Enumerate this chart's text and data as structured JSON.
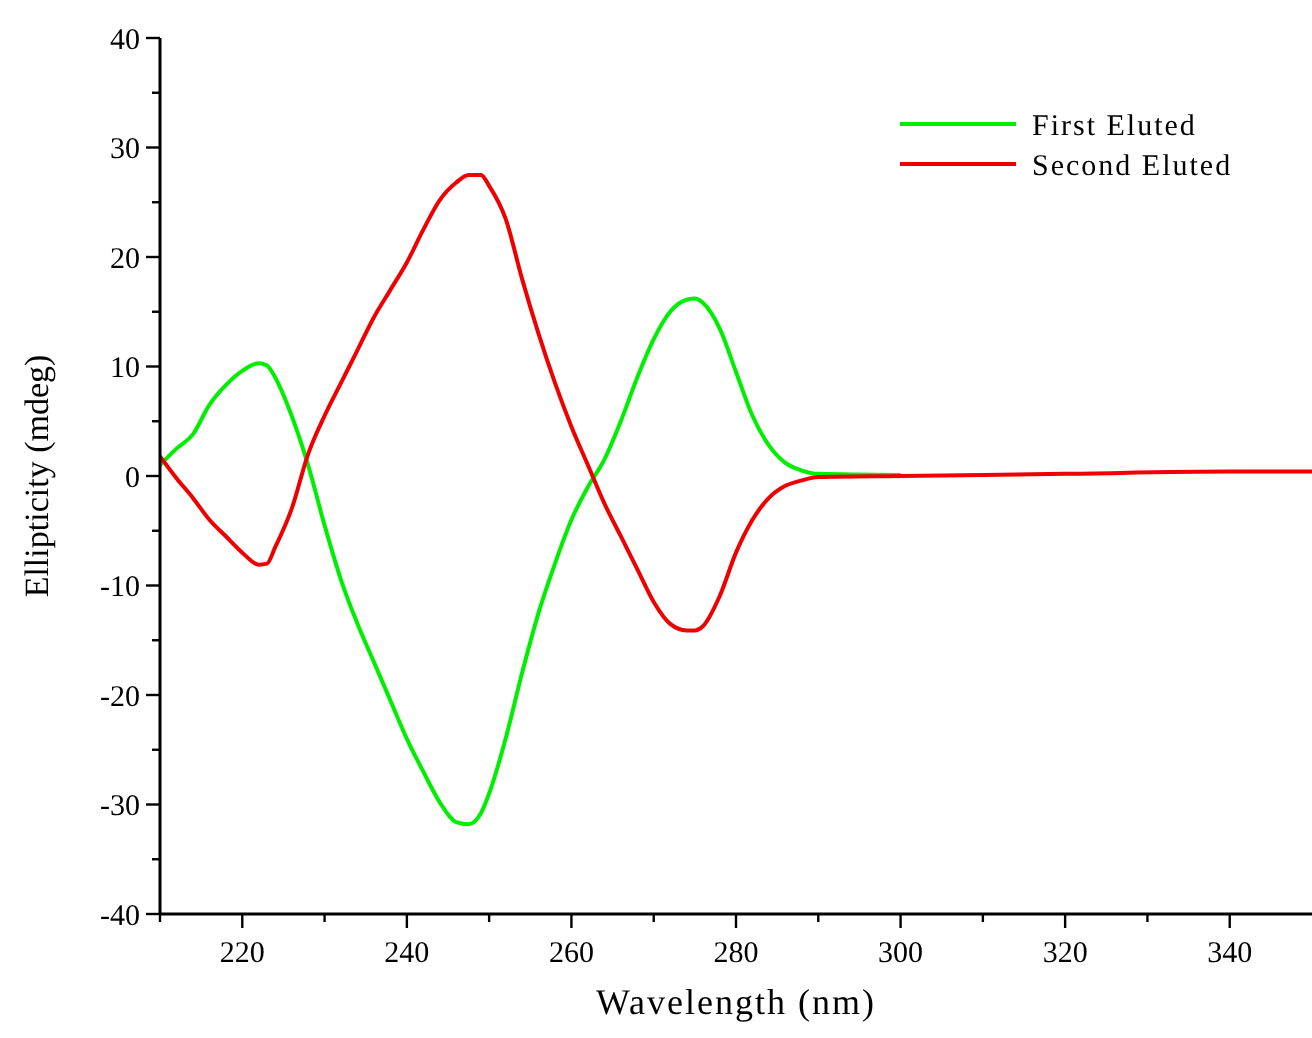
{
  "chart_data": {
    "type": "line",
    "xlabel": "Wavelength (nm)",
    "ylabel": "Ellipticity (mdeg)",
    "xlim": [
      210,
      350
    ],
    "ylim": [
      -40,
      40
    ],
    "xticks": [
      {
        "value": 210,
        "label": null
      },
      220,
      {
        "value": 230,
        "label": null
      },
      240,
      {
        "value": 250,
        "label": null
      },
      260,
      {
        "value": 270,
        "label": null
      },
      280,
      {
        "value": 290,
        "label": null
      },
      300,
      {
        "value": 310,
        "label": null
      },
      320,
      {
        "value": 330,
        "label": null
      },
      340
    ],
    "yticks": [
      -40,
      {
        "value": -35,
        "label": null
      },
      -30,
      {
        "value": -25,
        "label": null
      },
      -20,
      {
        "value": -15,
        "label": null
      },
      -10,
      {
        "value": -5,
        "label": null
      },
      0,
      {
        "value": 5,
        "label": null
      },
      10,
      {
        "value": 15,
        "label": null
      },
      20,
      {
        "value": 25,
        "label": null
      },
      30,
      {
        "value": 35,
        "label": null
      },
      40
    ],
    "grid": false,
    "legend": "top right",
    "marker": "none",
    "line_style": "solid",
    "x": [
      210,
      212,
      214,
      216,
      218,
      220,
      222,
      223,
      224,
      226,
      228,
      230,
      232,
      234,
      236,
      238,
      240,
      242,
      244,
      246,
      247.5,
      249,
      250,
      252,
      254,
      256,
      258,
      260,
      262,
      264,
      266,
      268,
      270,
      272,
      274,
      275,
      276,
      278,
      280,
      282,
      284,
      286,
      288,
      290,
      300,
      320,
      340,
      350
    ],
    "series": [
      {
        "name": "First Eluted",
        "color": "#00ee00",
        "values": [
          1.0,
          2.5,
          3.8,
          6.5,
          8.3,
          9.6,
          10.3,
          10.1,
          9.0,
          5.5,
          1.0,
          -4.5,
          -9.5,
          -13.5,
          -17,
          -20.5,
          -24,
          -27,
          -29.8,
          -31.6,
          -31.8,
          -30.8,
          -29,
          -24,
          -18,
          -12.5,
          -8,
          -4,
          -1,
          1.5,
          5,
          9,
          12.5,
          15,
          16.1,
          16.2,
          15.8,
          13.5,
          9.5,
          5.5,
          2.8,
          1.2,
          0.5,
          0.2,
          0.1,
          null,
          null,
          null
        ]
      },
      {
        "name": "Second Eluted",
        "color": "#ee0000",
        "values": [
          1.8,
          -0.2,
          -2,
          -4,
          -5.5,
          -7,
          -8.1,
          -8,
          -6.5,
          -3,
          2,
          5.5,
          8.5,
          11.5,
          14.5,
          17,
          19.5,
          22.5,
          25.2,
          26.8,
          27.5,
          27.5,
          26.5,
          23.5,
          18,
          13,
          8.5,
          4.5,
          1,
          -2.5,
          -5.5,
          -8.5,
          -11.5,
          -13.5,
          -14.1,
          -14.1,
          -13.7,
          -11,
          -7,
          -4,
          -2,
          -0.9,
          -0.4,
          -0.1,
          0,
          0.2,
          0.4,
          0.4
        ]
      }
    ]
  }
}
